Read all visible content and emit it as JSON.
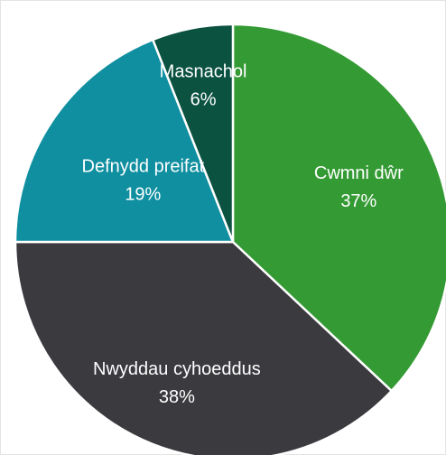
{
  "chart_data": {
    "type": "pie",
    "categories": [
      "Cwmni dŵr",
      "Nwyddau cyhoeddus",
      "Defnydd preifat",
      "Masnachol"
    ],
    "values": [
      37,
      38,
      19,
      6
    ],
    "value_labels": [
      "37%",
      "38%",
      "19%",
      "6%"
    ],
    "colors": [
      "#349a34",
      "#3b3a3f",
      "#0f8fa0",
      "#0b5241"
    ]
  }
}
